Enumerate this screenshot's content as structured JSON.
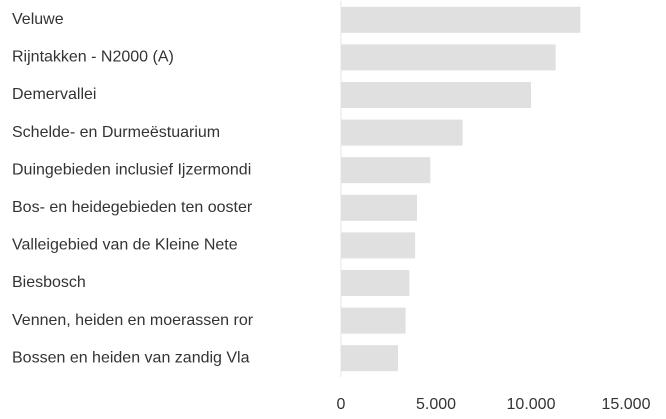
{
  "chart_data": {
    "type": "hbar",
    "categories": [
      "Veluwe",
      "Rijntakken - N2000 (A)",
      "Demervallei",
      "Schelde- en Durmeëstuarium",
      "Duingebieden inclusief Ijzermondi",
      "Bos- en heidegebieden ten ooster",
      "Valleigebied van de Kleine Nete",
      "Biesbosch",
      "Vennen, heiden en moerassen ror",
      "Bossen en heiden van zandig Vla"
    ],
    "values": [
      12600,
      11300,
      10000,
      6400,
      4700,
      4000,
      3900,
      3600,
      3400,
      3000
    ],
    "color": "#e0e0e0",
    "xlim": [
      0,
      15000
    ],
    "xticks": [
      0,
      {
        "value": 5000,
        "label": "5.000"
      },
      {
        "value": 10000,
        "label": "10.000"
      },
      {
        "value": 15000,
        "label": "15.000"
      }
    ],
    "grid": false
  }
}
